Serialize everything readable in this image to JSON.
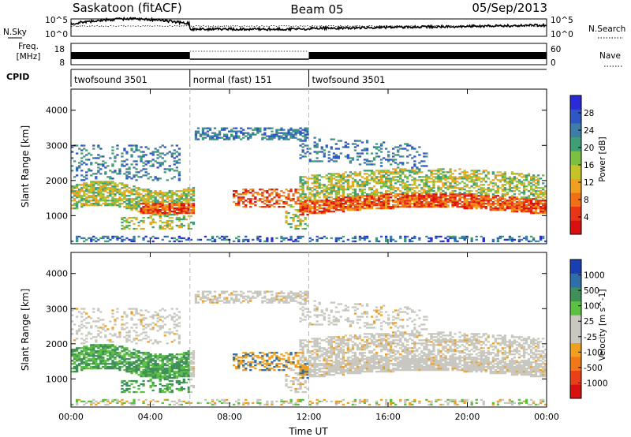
{
  "header": {
    "station": "Saskatoon (fitACF)",
    "beam": "Beam 05",
    "date": "05/Sep/2013"
  },
  "status_panels": {
    "nsky_label": "N.Sky",
    "nsearch_label": "N.Search",
    "noise_ticks": [
      "10^5",
      "10^0"
    ],
    "noise_ticks_right": [
      "10^5",
      "10^0"
    ],
    "freq_label": "Freq.",
    "freq_unit": "[MHz]",
    "freq_ticks": [
      "18",
      "8"
    ],
    "nave_label": "Nave",
    "nave_ticks": [
      "60",
      "0"
    ],
    "cpid_label": "CPID",
    "cpid_segments": [
      {
        "start_hour": 0,
        "end_hour": 6,
        "label": "twofsound 3501"
      },
      {
        "start_hour": 6,
        "end_hour": 12,
        "label": "normal (fast) 151"
      },
      {
        "start_hour": 12,
        "end_hour": 24,
        "label": "twofsound 3501"
      }
    ]
  },
  "chart_data": [
    {
      "type": "heatmap",
      "name": "power",
      "ylabel": "Slant Range [km]",
      "xlabel": "",
      "ylim": [
        200,
        4600
      ],
      "xlim": [
        0,
        24
      ],
      "yticks": [
        1000,
        2000,
        3000,
        4000
      ],
      "xticks": [
        "00:00",
        "04:00",
        "08:00",
        "12:00",
        "16:00",
        "20:00",
        "00:00"
      ],
      "colorbar": {
        "label": "Power [dB]",
        "ticks": [
          "4",
          "8",
          "12",
          "16",
          "20",
          "24",
          "28"
        ],
        "colors": [
          "#2a2ad6",
          "#2f57c4",
          "#3d7ea8",
          "#3e9f77",
          "#7cc043",
          "#c6c22a",
          "#f0a020",
          "#f07018",
          "#e83515",
          "#d81010"
        ]
      }
    },
    {
      "type": "heatmap",
      "name": "velocity",
      "ylabel": "Slant Range [km]",
      "xlabel": "Time UT",
      "ylim": [
        200,
        4600
      ],
      "xlim": [
        0,
        24
      ],
      "yticks": [
        1000,
        2000,
        3000,
        4000
      ],
      "xticks": [
        "00:00",
        "04:00",
        "08:00",
        "12:00",
        "16:00",
        "20:00",
        "00:00"
      ],
      "colorbar": {
        "label": "Velocity [m s^-1]",
        "ticks": [
          "1000",
          "500",
          "100",
          "25",
          "-25",
          "-100",
          "-500",
          "-1000"
        ],
        "colors": [
          "#1a3fb0",
          "#2f6fa8",
          "#3f8f5a",
          "#5cc040",
          "#c8c8c0",
          "#c8c8c0",
          "#f0a020",
          "#f07818",
          "#e84018",
          "#d81010"
        ]
      }
    }
  ],
  "colors": {
    "axis": "#000000",
    "grid_dash": "#bbbbbb",
    "velocity_ground": "#c8c8c0"
  }
}
